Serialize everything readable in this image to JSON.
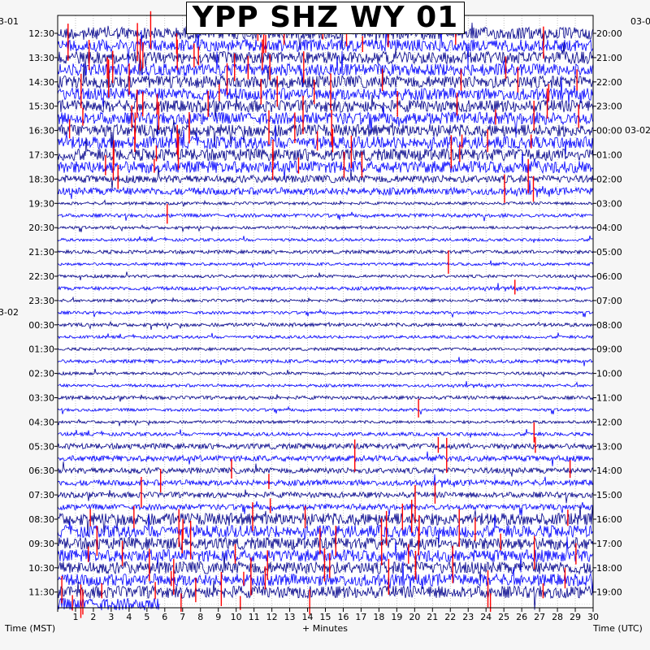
{
  "chart_data": {
    "type": "line",
    "title": "YPP SHZ WY 01",
    "xlabel": "+ Minutes",
    "left_axis_label": "Time (MST)",
    "right_axis_label": "Time (UTC)",
    "xlim": [
      0,
      30
    ],
    "x_ticks": [
      "1",
      "2",
      "3",
      "4",
      "5",
      "6",
      "7",
      "8",
      "9",
      "10",
      "11",
      "12",
      "13",
      "14",
      "15",
      "16",
      "17",
      "18",
      "19",
      "20",
      "21",
      "22",
      "23",
      "24",
      "25",
      "26",
      "27",
      "28",
      "29",
      "30"
    ],
    "left_date_labels": [
      "3-01",
      "3-02"
    ],
    "right_date_labels": [
      "03-0",
      "03-02"
    ],
    "left_time_labels": [
      "12:30",
      "13:30",
      "14:30",
      "15:30",
      "16:30",
      "17:30",
      "18:30",
      "19:30",
      "20:30",
      "21:30",
      "22:30",
      "23:30",
      "00:30",
      "01:30",
      "02:30",
      "03:30",
      "04:30",
      "05:30",
      "06:30",
      "07:30",
      "08:30",
      "09:30",
      "10:30",
      "11:30"
    ],
    "right_time_labels": [
      "20:00",
      "21:00",
      "22:00",
      "23:00",
      "00:00",
      "01:00",
      "02:00",
      "03:00",
      "04:00",
      "05:00",
      "06:00",
      "07:00",
      "08:00",
      "09:00",
      "10:00",
      "11:00",
      "12:00",
      "13:00",
      "14:00",
      "15:00",
      "16:00",
      "17:00",
      "18:00",
      "19:00"
    ],
    "trace_count": 48,
    "trace_colors": [
      "#00008b",
      "#0000ff"
    ],
    "clip_color": "#ff0000",
    "grid": "dotted"
  }
}
